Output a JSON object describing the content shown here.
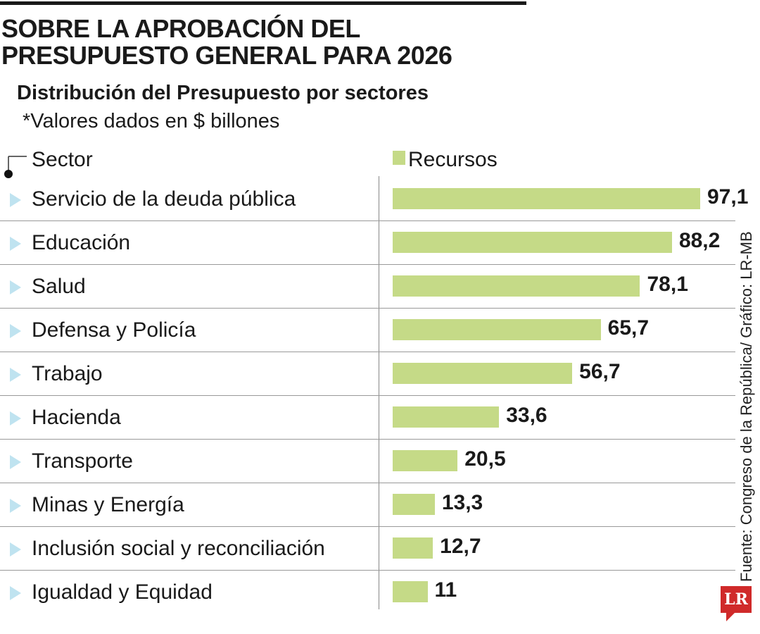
{
  "chart_data": {
    "type": "bar",
    "orientation": "horizontal",
    "title": "SOBRE LA APROBACIÓN DEL PRESUPUESTO GENERAL PARA 2026",
    "subtitle": "Distribución del Presupuesto por sectores",
    "note": "*Valores dados en $ billones",
    "category_header": "Sector",
    "legend": "Recursos",
    "categories": [
      "Servicio de la deuda pública",
      "Educación",
      "Salud",
      "Defensa y Policía",
      "Trabajo",
      "Hacienda",
      "Transporte",
      "Minas y Energía",
      "Inclusión social y reconciliación",
      "Igualdad y Equidad"
    ],
    "values": [
      97.1,
      88.2,
      78.1,
      65.7,
      56.7,
      33.6,
      20.5,
      13.3,
      12.7,
      11
    ],
    "value_labels": [
      "97,1",
      "88,2",
      "78,1",
      "65,7",
      "56,7",
      "33,6",
      "20,5",
      "13,3",
      "12,7",
      "11"
    ],
    "bar_color": "#c5da87",
    "marker_color": "#bfe3f0",
    "source": "Fuente: Congreso de la República/ Gráfico: LR-MB"
  },
  "logo": "LR"
}
